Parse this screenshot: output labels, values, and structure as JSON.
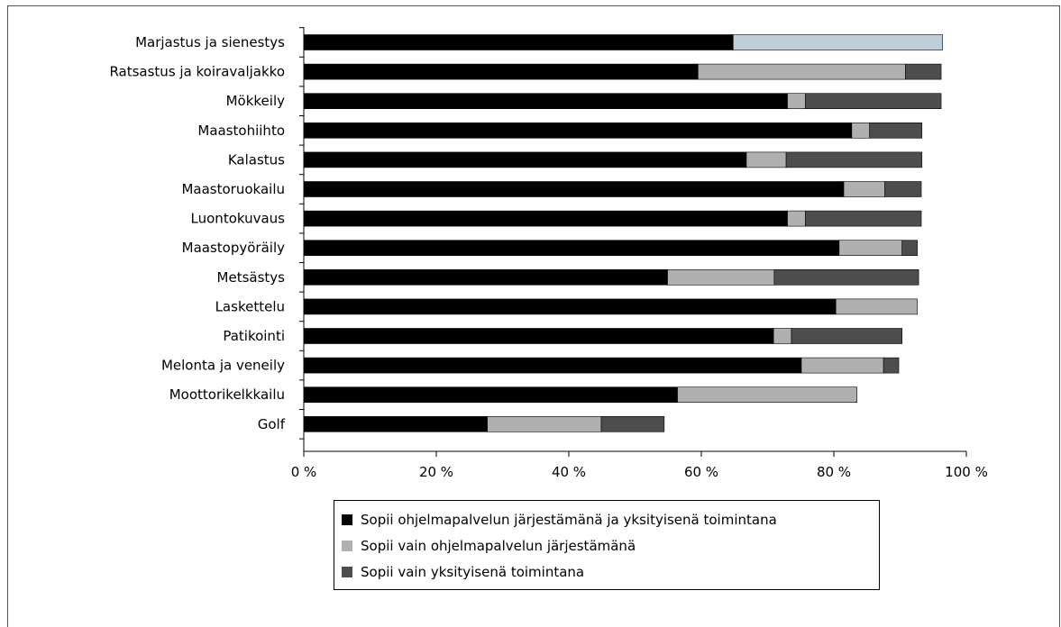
{
  "chart_data": {
    "type": "bar",
    "orientation": "horizontal",
    "stacked": true,
    "categories": [
      "Marjastus ja sienestys",
      "Ratsastus ja koiravaljakko",
      "Mökkeily",
      "Maastohiihto",
      "Kalastus",
      "Maastoruokailu",
      "Luontokuvaus",
      "Maastopyöräily",
      "Metsästys",
      "Laskettelu",
      "Patikointi",
      "Melonta ja veneily",
      "Moottorikelkkailu",
      "Golf"
    ],
    "series": [
      {
        "name": "Sopii ohjelmapalvelun järjestämänä ja yksityisenä toimintana",
        "color": "#000000",
        "values": [
          64.8,
          59.5,
          73.0,
          82.7,
          66.8,
          81.5,
          73.0,
          80.8,
          54.9,
          80.3,
          70.9,
          75.1,
          56.4,
          27.7
        ]
      },
      {
        "name": "Sopii vain ohjelmapalvelun järjestämänä",
        "color": "#b0b0b0",
        "values": [
          31.6,
          31.3,
          2.7,
          2.7,
          6.0,
          6.2,
          2.7,
          9.5,
          16.1,
          12.3,
          2.7,
          12.4,
          27.1,
          17.2
        ]
      },
      {
        "name": "Sopii vain yksityisenä toimintana",
        "color": "#4d4d4d",
        "values": [
          0,
          5.4,
          20.5,
          7.9,
          20.5,
          5.5,
          17.5,
          2.3,
          21.8,
          0,
          16.7,
          2.3,
          0,
          9.5
        ]
      }
    ],
    "special_colors": {
      "Marjastus ja sienestys": [
        "#000000",
        "#bfcfd8",
        "#4d4d4d"
      ]
    },
    "xlim": [
      0,
      100
    ],
    "xticks": [
      "0 %",
      "20 %",
      "40 %",
      "60 %",
      "80 %",
      "100 %"
    ],
    "grid": false,
    "legend_position": "bottom"
  }
}
